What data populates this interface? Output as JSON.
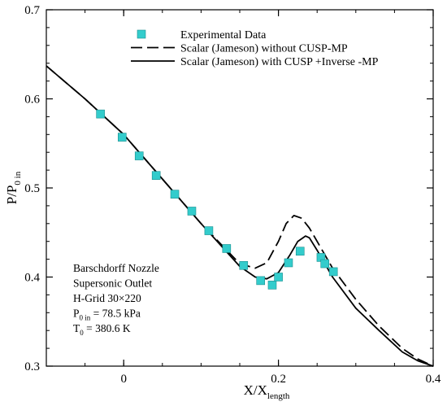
{
  "chart_data": {
    "type": "line",
    "xlim": [
      -0.1,
      0.4
    ],
    "ylim": [
      0.3,
      0.7
    ],
    "x_ticks": [
      {
        "value": 0,
        "label": "0"
      },
      {
        "value": 0.2,
        "label": "0.2"
      },
      {
        "value": 0.4,
        "label": "0.4"
      }
    ],
    "x_minor_step": 0.05,
    "y_ticks": [
      {
        "value": 0.3,
        "label": "0.3"
      },
      {
        "value": 0.4,
        "label": "0.4"
      },
      {
        "value": 0.5,
        "label": "0.5"
      },
      {
        "value": 0.6,
        "label": "0.6"
      },
      {
        "value": 0.7,
        "label": "0.7"
      }
    ],
    "y_minor_step": 0.02,
    "grid": false,
    "legend_position": "top-right",
    "xlabel": {
      "main": "X/X",
      "sub": "length"
    },
    "ylabel": {
      "main": "P/P",
      "sub": "0 in"
    },
    "series": [
      {
        "name": "Experimental Data",
        "style": "markers",
        "marker": "square",
        "color": "#33cccc",
        "x": [
          -0.03,
          -0.002,
          0.02,
          0.042,
          0.066,
          0.088,
          0.11,
          0.133,
          0.155,
          0.177,
          0.192,
          0.2,
          0.213,
          0.228,
          0.255,
          0.26,
          0.271
        ],
        "y": [
          0.583,
          0.557,
          0.536,
          0.514,
          0.493,
          0.474,
          0.452,
          0.432,
          0.413,
          0.396,
          0.391,
          0.4,
          0.416,
          0.429,
          0.422,
          0.415,
          0.406
        ]
      },
      {
        "name": "Scalar (Jameson) without CUSP-MP",
        "style": "dashed",
        "color": "#000000",
        "x": [
          -0.1,
          -0.05,
          0.0,
          0.05,
          0.1,
          0.15,
          0.17,
          0.185,
          0.2,
          0.21,
          0.22,
          0.23,
          0.24,
          0.25,
          0.27,
          0.3,
          0.33,
          0.36,
          0.38,
          0.4
        ],
        "y": [
          0.637,
          0.6,
          0.56,
          0.51,
          0.46,
          0.415,
          0.41,
          0.416,
          0.44,
          0.46,
          0.469,
          0.466,
          0.455,
          0.44,
          0.41,
          0.375,
          0.345,
          0.32,
          0.308,
          0.3
        ]
      },
      {
        "name": "Scalar (Jameson) with CUSP +Inverse -MP",
        "style": "solid",
        "color": "#000000",
        "x": [
          -0.1,
          -0.05,
          0.0,
          0.05,
          0.1,
          0.15,
          0.17,
          0.185,
          0.2,
          0.215,
          0.225,
          0.235,
          0.24,
          0.25,
          0.27,
          0.3,
          0.33,
          0.36,
          0.38,
          0.4
        ],
        "y": [
          0.637,
          0.6,
          0.56,
          0.51,
          0.46,
          0.412,
          0.4,
          0.398,
          0.405,
          0.425,
          0.44,
          0.446,
          0.444,
          0.43,
          0.4,
          0.365,
          0.34,
          0.316,
          0.306,
          0.3
        ]
      }
    ],
    "annotation": {
      "lines": [
        {
          "text": "Barschdorff Nozzle"
        },
        {
          "text": "Supersonic Outlet"
        },
        {
          "text": "H-Grid 30×220"
        },
        {
          "main": "P",
          "sub": "0 in",
          "rest": " = 78.5 kPa"
        },
        {
          "main": "T",
          "sub": "0",
          "rest": "  = 380.6 K"
        }
      ]
    }
  }
}
